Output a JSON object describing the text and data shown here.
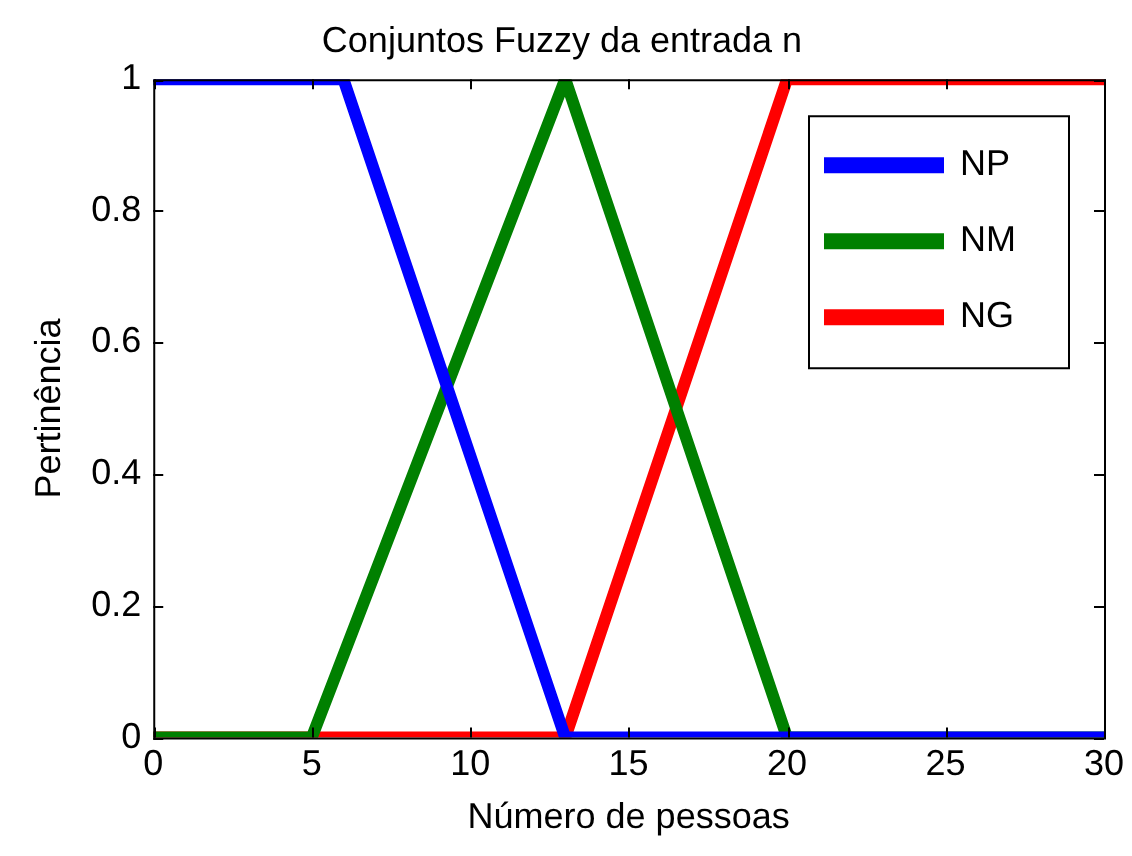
{
  "chart_data": {
    "type": "line",
    "title": "Conjuntos Fuzzy da entrada n",
    "xlabel": "Número de pessoas",
    "ylabel": "Pertinência",
    "series": [
      {
        "name": "NP",
        "color": "#0000ff",
        "x": [
          0,
          6,
          13,
          30
        ],
        "values": [
          1,
          1,
          0,
          0
        ]
      },
      {
        "name": "NM",
        "color": "#008000",
        "x": [
          0,
          5,
          13,
          20,
          30
        ],
        "values": [
          0,
          0,
          1,
          0,
          0
        ]
      },
      {
        "name": "NG",
        "color": "#ff0000",
        "x": [
          0,
          13,
          20,
          30
        ],
        "values": [
          0,
          0,
          1,
          1
        ]
      }
    ],
    "xlim": [
      0,
      30
    ],
    "xticks": [
      0,
      5,
      10,
      15,
      20,
      25,
      30
    ],
    "ylim": [
      0,
      1
    ],
    "yticks": [
      0,
      0.2,
      0.4,
      0.6,
      0.8,
      1
    ],
    "legend": "top right",
    "grid": false,
    "marker": "none",
    "line_style": "solid"
  }
}
